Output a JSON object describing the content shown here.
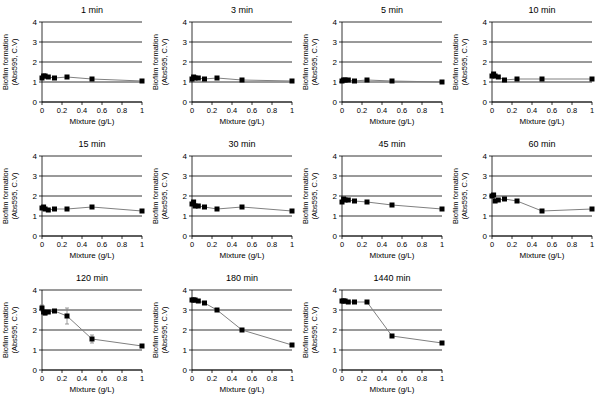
{
  "chart_data": [
    {
      "type": "line",
      "title": "1 min",
      "x_label": "Mixture (g/L)",
      "y_label": [
        "Biofilm formation",
        "(Abs595, C.V)"
      ],
      "x": [
        0,
        0.016,
        0.031,
        0.063,
        0.125,
        0.25,
        0.5,
        1
      ],
      "values": [
        1.2,
        1.3,
        1.3,
        1.25,
        1.2,
        1.25,
        1.15,
        1.05
      ],
      "xlim": [
        0,
        1
      ],
      "ylim": [
        0,
        4
      ],
      "xticks": [
        0,
        0.2,
        0.4,
        0.6,
        0.8,
        1
      ],
      "yticks": [
        0,
        1,
        2,
        3,
        4
      ],
      "grid": true,
      "color": "#000000",
      "marker": "square"
    },
    {
      "type": "line",
      "title": "3 min",
      "x_label": "Mixture (g/L)",
      "y_label": [
        "Biofilm formation",
        "(Abs595, C.V)"
      ],
      "x": [
        0,
        0.016,
        0.031,
        0.063,
        0.125,
        0.25,
        0.5,
        1
      ],
      "values": [
        1.15,
        1.25,
        1.2,
        1.2,
        1.15,
        1.2,
        1.1,
        1.05
      ],
      "xlim": [
        0,
        1
      ],
      "ylim": [
        0,
        4
      ],
      "xticks": [
        0,
        0.2,
        0.4,
        0.6,
        0.8,
        1
      ],
      "yticks": [
        0,
        1,
        2,
        3,
        4
      ],
      "grid": true,
      "color": "#000000",
      "marker": "square"
    },
    {
      "type": "line",
      "title": "5 min",
      "x_label": "Mixture (g/L)",
      "y_label": [
        "Biofilm formation",
        "(Abs595, C.V)"
      ],
      "x": [
        0,
        0.016,
        0.031,
        0.063,
        0.125,
        0.25,
        0.5,
        1
      ],
      "values": [
        1.05,
        1.1,
        1.1,
        1.1,
        1.05,
        1.1,
        1.05,
        1.0
      ],
      "xlim": [
        0,
        1
      ],
      "ylim": [
        0,
        4
      ],
      "xticks": [
        0,
        0.2,
        0.4,
        0.6,
        0.8,
        1
      ],
      "yticks": [
        0,
        1,
        2,
        3,
        4
      ],
      "grid": true,
      "color": "#000000",
      "marker": "square"
    },
    {
      "type": "line",
      "title": "10 min",
      "x_label": "Mixture (g/L)",
      "y_label": [
        "Biofilm formation",
        "(Abs595, C.V)"
      ],
      "x": [
        0,
        0.016,
        0.031,
        0.063,
        0.125,
        0.25,
        0.5,
        1
      ],
      "values": [
        1.3,
        1.4,
        1.3,
        1.25,
        1.1,
        1.15,
        1.15,
        1.15
      ],
      "xlim": [
        0,
        1
      ],
      "ylim": [
        0,
        4
      ],
      "xticks": [
        0,
        0.2,
        0.4,
        0.6,
        0.8,
        1
      ],
      "yticks": [
        0,
        1,
        2,
        3,
        4
      ],
      "grid": true,
      "color": "#000000",
      "marker": "square"
    },
    {
      "type": "line",
      "title": "15 min",
      "x_label": "Mixture (g/L)",
      "y_label": [
        "Biofilm formation",
        "(Abs595, C.V)"
      ],
      "x": [
        0,
        0.016,
        0.031,
        0.063,
        0.125,
        0.25,
        0.5,
        1
      ],
      "values": [
        1.4,
        1.45,
        1.35,
        1.3,
        1.35,
        1.35,
        1.45,
        1.25
      ],
      "xlim": [
        0,
        1
      ],
      "ylim": [
        0,
        4
      ],
      "xticks": [
        0,
        0.2,
        0.4,
        0.6,
        0.8,
        1
      ],
      "yticks": [
        0,
        1,
        2,
        3,
        4
      ],
      "grid": true,
      "color": "#000000",
      "marker": "square"
    },
    {
      "type": "line",
      "title": "30 min",
      "x_label": "Mixture (g/L)",
      "y_label": [
        "Biofilm formation",
        "(Abs595, C.V)"
      ],
      "x": [
        0,
        0.016,
        0.031,
        0.063,
        0.125,
        0.25,
        0.5,
        1
      ],
      "values": [
        1.6,
        1.7,
        1.5,
        1.5,
        1.45,
        1.35,
        1.45,
        1.25
      ],
      "xlim": [
        0,
        1
      ],
      "ylim": [
        0,
        4
      ],
      "xticks": [
        0,
        0.2,
        0.4,
        0.6,
        0.8,
        1
      ],
      "yticks": [
        0,
        1,
        2,
        3,
        4
      ],
      "grid": true,
      "color": "#000000",
      "marker": "square"
    },
    {
      "type": "line",
      "title": "45 min",
      "x_label": "Mixture (g/L)",
      "y_label": [
        "Biofilm formation",
        "(Abs595, C.V)"
      ],
      "x": [
        0,
        0.016,
        0.031,
        0.063,
        0.125,
        0.25,
        0.5,
        1
      ],
      "values": [
        1.7,
        1.85,
        1.8,
        1.8,
        1.75,
        1.7,
        1.55,
        1.35
      ],
      "xlim": [
        0,
        1
      ],
      "ylim": [
        0,
        4
      ],
      "xticks": [
        0,
        0.2,
        0.4,
        0.6,
        0.8,
        1
      ],
      "yticks": [
        0,
        1,
        2,
        3,
        4
      ],
      "grid": true,
      "color": "#000000",
      "marker": "square"
    },
    {
      "type": "line",
      "title": "60 min",
      "x_label": "Mixture (g/L)",
      "y_label": [
        "Biofilm formation",
        "(Abs595, C.V)"
      ],
      "x": [
        0,
        0.016,
        0.031,
        0.063,
        0.125,
        0.25,
        0.5,
        1
      ],
      "values": [
        2.0,
        2.05,
        1.75,
        1.8,
        1.85,
        1.75,
        1.25,
        1.35
      ],
      "xlim": [
        0,
        1
      ],
      "ylim": [
        0,
        4
      ],
      "xticks": [
        0,
        0.2,
        0.4,
        0.6,
        0.8,
        1
      ],
      "yticks": [
        0,
        1,
        2,
        3,
        4
      ],
      "grid": true,
      "color": "#000000",
      "marker": "square"
    },
    {
      "type": "line",
      "title": "120 min",
      "x_label": "Mixture (g/L)",
      "y_label": [
        "Biofilm formation",
        "(Abs595, C.V)"
      ],
      "x": [
        0,
        0.016,
        0.031,
        0.063,
        0.125,
        0.25,
        0.5,
        1
      ],
      "values": [
        3.1,
        2.9,
        2.85,
        2.9,
        2.95,
        2.7,
        1.55,
        1.2
      ],
      "errors": [
        0.15,
        0.1,
        0.1,
        0.05,
        0.05,
        0.4,
        0.2,
        0.05
      ],
      "xlim": [
        0,
        1
      ],
      "ylim": [
        0,
        4
      ],
      "xticks": [
        0,
        0.2,
        0.4,
        0.6,
        0.8,
        1
      ],
      "yticks": [
        0,
        1,
        2,
        3,
        4
      ],
      "grid": true,
      "color": "#000000",
      "marker": "square"
    },
    {
      "type": "line",
      "title": "180 min",
      "x_label": "Mixture (g/L)",
      "y_label": [
        "Biofilm formation",
        "(Abs595, C.V)"
      ],
      "x": [
        0,
        0.016,
        0.031,
        0.063,
        0.125,
        0.25,
        0.5,
        1
      ],
      "values": [
        3.5,
        3.5,
        3.5,
        3.45,
        3.35,
        3.0,
        2.0,
        1.25
      ],
      "xlim": [
        0,
        1
      ],
      "ylim": [
        0,
        4
      ],
      "xticks": [
        0,
        0.2,
        0.4,
        0.6,
        0.8,
        1
      ],
      "yticks": [
        0,
        1,
        2,
        3,
        4
      ],
      "grid": true,
      "color": "#000000",
      "marker": "square"
    },
    {
      "type": "line",
      "title": "1440 min",
      "x_label": "Mixture (g/L)",
      "y_label": [
        "Biofilm formation",
        "(Abs595, C.V)"
      ],
      "x": [
        0,
        0.016,
        0.031,
        0.063,
        0.125,
        0.25,
        0.5,
        1
      ],
      "values": [
        3.45,
        3.45,
        3.45,
        3.4,
        3.4,
        3.4,
        1.7,
        1.35
      ],
      "xlim": [
        0,
        1
      ],
      "ylim": [
        0,
        4
      ],
      "xticks": [
        0,
        0.2,
        0.4,
        0.6,
        0.8,
        1
      ],
      "yticks": [
        0,
        1,
        2,
        3,
        4
      ],
      "grid": true,
      "color": "#000000",
      "marker": "square"
    }
  ]
}
